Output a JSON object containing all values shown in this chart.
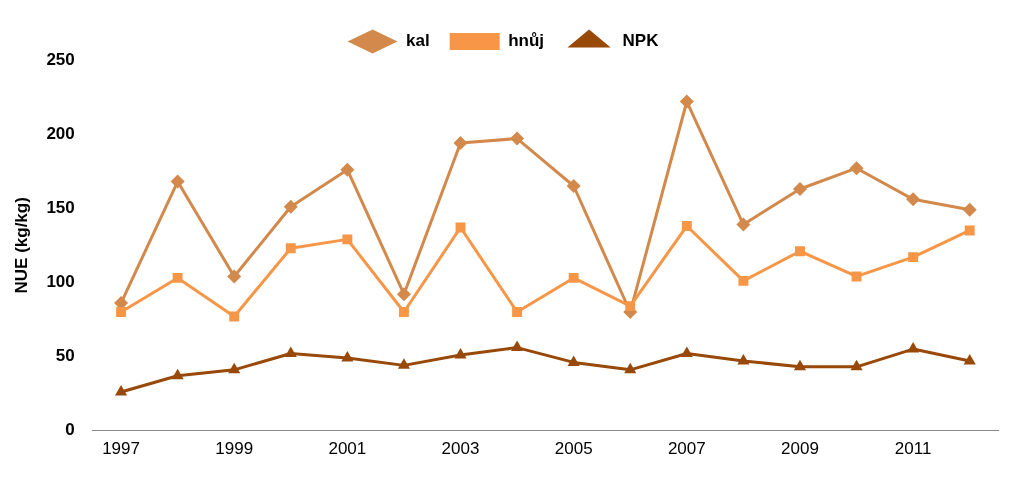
{
  "chart_data": {
    "type": "line",
    "ylabel": "NUE (kg/kg)",
    "categories": [
      "1997",
      null,
      "1999",
      null,
      "2001",
      null,
      "2003",
      null,
      "2005",
      null,
      "2007",
      null,
      "2009",
      null,
      "2011",
      null
    ],
    "ylim": [
      0,
      250
    ],
    "yticks": [
      0,
      50,
      100,
      150,
      200,
      250
    ],
    "grid": false,
    "legend": "top",
    "series": [
      {
        "name": "kal",
        "color": "#d2894b",
        "marker": "diamond",
        "values": [
          86,
          168,
          104,
          151,
          176,
          92,
          194,
          197,
          165,
          80,
          222,
          139,
          163,
          177,
          156,
          149
        ]
      },
      {
        "name": "hnůj",
        "color": "#f79646",
        "marker": "square",
        "values": [
          80,
          103,
          77,
          123,
          129,
          80,
          137,
          80,
          103,
          84,
          138,
          101,
          121,
          104,
          117,
          135
        ]
      },
      {
        "name": "NPK",
        "color": "#984807",
        "marker": "triangle",
        "values": [
          26,
          37,
          41,
          52,
          49,
          44,
          51,
          56,
          46,
          41,
          52,
          47,
          43,
          43,
          55,
          47
        ]
      }
    ]
  }
}
